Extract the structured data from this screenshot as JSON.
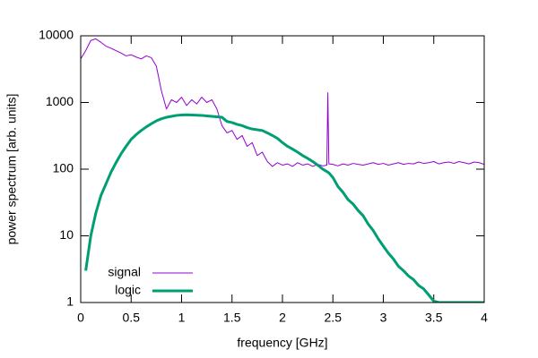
{
  "chart_data": {
    "type": "line",
    "xlabel": "frequency [GHz]",
    "ylabel": "power spectrum [arb. units]",
    "x": [
      0,
      0.05,
      0.1,
      0.15,
      0.2,
      0.25,
      0.3,
      0.35,
      0.4,
      0.45,
      0.5,
      0.55,
      0.6,
      0.65,
      0.7,
      0.75,
      0.8,
      0.85,
      0.9,
      0.95,
      1,
      1.05,
      1.1,
      1.15,
      1.2,
      1.25,
      1.3,
      1.35,
      1.4,
      1.45,
      1.5,
      1.55,
      1.6,
      1.65,
      1.7,
      1.75,
      1.8,
      1.85,
      1.9,
      1.95,
      2,
      2.05,
      2.1,
      2.15,
      2.2,
      2.25,
      2.3,
      2.35,
      2.4,
      2.44,
      2.45,
      2.46,
      2.5,
      2.55,
      2.6,
      2.65,
      2.7,
      2.75,
      2.8,
      2.85,
      2.9,
      2.95,
      3,
      3.05,
      3.1,
      3.15,
      3.2,
      3.25,
      3.3,
      3.35,
      3.4,
      3.45,
      3.5,
      3.55,
      3.6,
      3.65,
      3.7,
      3.75,
      3.8,
      3.85,
      3.9,
      3.95,
      4
    ],
    "series": [
      {
        "name": "signal",
        "color": "#9400d3",
        "width": 1,
        "values": [
          4500,
          6000,
          8500,
          9000,
          8000,
          7000,
          6500,
          6000,
          5500,
          5000,
          5200,
          4800,
          4500,
          5000,
          4700,
          3500,
          1500,
          800,
          1100,
          1000,
          1200,
          900,
          1100,
          950,
          1200,
          1000,
          1100,
          800,
          450,
          350,
          380,
          280,
          320,
          220,
          250,
          160,
          180,
          130,
          110,
          125,
          115,
          120,
          110,
          125,
          115,
          120,
          110,
          118,
          112,
          115,
          1400,
          120,
          118,
          112,
          120,
          115,
          122,
          118,
          115,
          120,
          125,
          118,
          122,
          115,
          120,
          125,
          118,
          122,
          120,
          128,
          122,
          125,
          130,
          120,
          125,
          128,
          122,
          130,
          125,
          120,
          128,
          125,
          118
        ]
      },
      {
        "name": "logic",
        "color": "#009e73",
        "width": 3,
        "values": [
          null,
          3,
          10,
          22,
          40,
          60,
          90,
          125,
          170,
          220,
          280,
          330,
          380,
          430,
          480,
          530,
          570,
          600,
          620,
          640,
          650,
          655,
          650,
          645,
          640,
          630,
          620,
          610,
          600,
          520,
          500,
          470,
          450,
          420,
          400,
          390,
          380,
          350,
          320,
          290,
          250,
          220,
          200,
          180,
          160,
          145,
          130,
          115,
          100,
          92,
          90,
          88,
          75,
          55,
          45,
          35,
          30,
          24,
          20,
          15,
          12,
          9,
          7,
          5.5,
          4.5,
          3.5,
          3,
          2.5,
          2.2,
          1.8,
          1.6,
          1.3,
          1.05,
          1,
          1,
          1,
          1,
          1,
          1,
          1,
          1,
          1,
          1
        ]
      }
    ],
    "xlim": [
      0,
      4
    ],
    "xticks": [
      0,
      0.5,
      1,
      1.5,
      2,
      2.5,
      3,
      3.5,
      4
    ],
    "ylim": [
      1,
      10000
    ],
    "yticks": [
      1,
      10,
      100,
      1000,
      10000
    ],
    "ylog": true,
    "legend": "bottom-left"
  }
}
